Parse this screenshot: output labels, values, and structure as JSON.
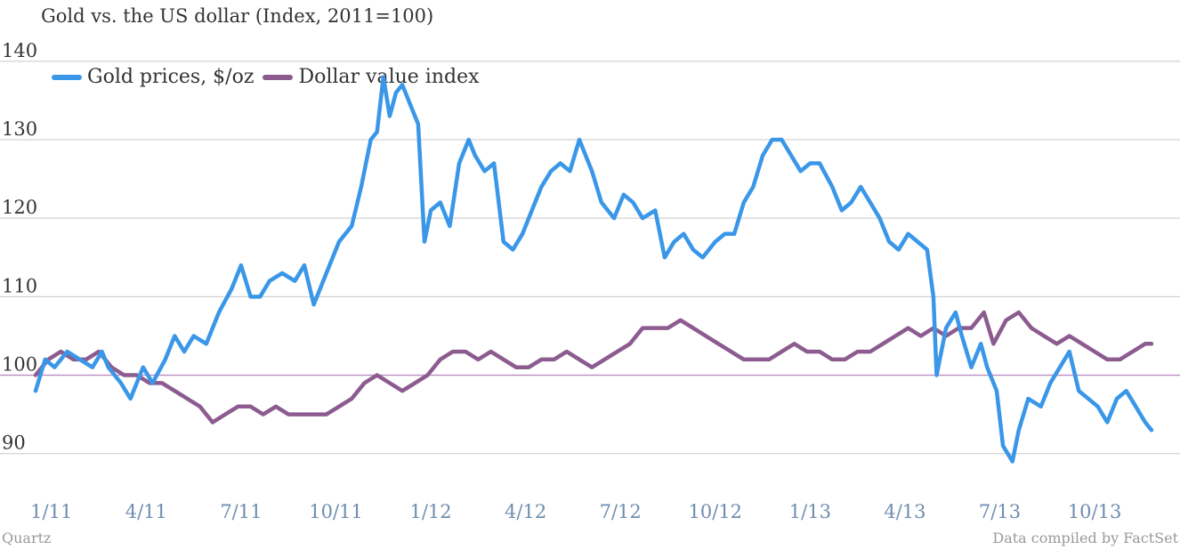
{
  "chart_data": {
    "type": "line",
    "title": "Gold vs. the US dollar (Index, 2011=100)",
    "xlabel": "",
    "ylabel": "",
    "ylim": [
      86,
      141
    ],
    "xlim": [
      0,
      36.2
    ],
    "y_ticks": [
      90,
      100,
      110,
      120,
      130,
      140
    ],
    "x_ticks": [
      {
        "x": 0.5,
        "label": "1/11"
      },
      {
        "x": 3.5,
        "label": "4/11"
      },
      {
        "x": 6.5,
        "label": "7/11"
      },
      {
        "x": 9.5,
        "label": "10/11"
      },
      {
        "x": 12.5,
        "label": "1/12"
      },
      {
        "x": 15.5,
        "label": "4/12"
      },
      {
        "x": 18.5,
        "label": "7/12"
      },
      {
        "x": 21.5,
        "label": "10/12"
      },
      {
        "x": 24.5,
        "label": "1/13"
      },
      {
        "x": 27.5,
        "label": "4/13"
      },
      {
        "x": 30.5,
        "label": "7/13"
      },
      {
        "x": 33.5,
        "label": "10/13"
      }
    ],
    "reference_line": 100,
    "grid": true,
    "legend_position": "top-left",
    "series": [
      {
        "name": "Gold prices, $/oz",
        "color": "#3a97e8",
        "points": [
          [
            0,
            98
          ],
          [
            0.3,
            102
          ],
          [
            0.6,
            101
          ],
          [
            1.0,
            103
          ],
          [
            1.4,
            102
          ],
          [
            1.8,
            101
          ],
          [
            2.1,
            103
          ],
          [
            2.3,
            101
          ],
          [
            2.7,
            99
          ],
          [
            3.0,
            97
          ],
          [
            3.4,
            101
          ],
          [
            3.7,
            99
          ],
          [
            4.1,
            102
          ],
          [
            4.4,
            105
          ],
          [
            4.7,
            103
          ],
          [
            5.0,
            105
          ],
          [
            5.4,
            104
          ],
          [
            5.8,
            108
          ],
          [
            6.2,
            111
          ],
          [
            6.5,
            114
          ],
          [
            6.8,
            110
          ],
          [
            7.1,
            110
          ],
          [
            7.4,
            112
          ],
          [
            7.8,
            113
          ],
          [
            8.2,
            112
          ],
          [
            8.5,
            114
          ],
          [
            8.8,
            109
          ],
          [
            9.2,
            113
          ],
          [
            9.6,
            117
          ],
          [
            10.0,
            119
          ],
          [
            10.3,
            124
          ],
          [
            10.6,
            130
          ],
          [
            10.8,
            131
          ],
          [
            11.0,
            138
          ],
          [
            11.2,
            133
          ],
          [
            11.4,
            136
          ],
          [
            11.6,
            137
          ],
          [
            11.9,
            134
          ],
          [
            12.1,
            132
          ],
          [
            12.3,
            117
          ],
          [
            12.5,
            121
          ],
          [
            12.8,
            122
          ],
          [
            13.1,
            119
          ],
          [
            13.4,
            127
          ],
          [
            13.7,
            130
          ],
          [
            13.9,
            128
          ],
          [
            14.2,
            126
          ],
          [
            14.5,
            127
          ],
          [
            14.8,
            117
          ],
          [
            15.1,
            116
          ],
          [
            15.4,
            118
          ],
          [
            15.7,
            121
          ],
          [
            16.0,
            124
          ],
          [
            16.3,
            126
          ],
          [
            16.6,
            127
          ],
          [
            16.9,
            126
          ],
          [
            17.2,
            130
          ],
          [
            17.6,
            126
          ],
          [
            17.9,
            122
          ],
          [
            18.3,
            120
          ],
          [
            18.6,
            123
          ],
          [
            18.9,
            122
          ],
          [
            19.2,
            120
          ],
          [
            19.6,
            121
          ],
          [
            19.9,
            115
          ],
          [
            20.2,
            117
          ],
          [
            20.5,
            118
          ],
          [
            20.8,
            116
          ],
          [
            21.1,
            115
          ],
          [
            21.5,
            117
          ],
          [
            21.8,
            118
          ],
          [
            22.1,
            118
          ],
          [
            22.4,
            122
          ],
          [
            22.7,
            124
          ],
          [
            23.0,
            128
          ],
          [
            23.3,
            130
          ],
          [
            23.6,
            130
          ],
          [
            23.9,
            128
          ],
          [
            24.2,
            126
          ],
          [
            24.5,
            127
          ],
          [
            24.8,
            127
          ],
          [
            25.2,
            124
          ],
          [
            25.5,
            121
          ],
          [
            25.8,
            122
          ],
          [
            26.1,
            124
          ],
          [
            26.4,
            122
          ],
          [
            26.7,
            120
          ],
          [
            27.0,
            117
          ],
          [
            27.3,
            116
          ],
          [
            27.6,
            118
          ],
          [
            27.9,
            117
          ],
          [
            28.2,
            116
          ],
          [
            28.4,
            110
          ],
          [
            28.5,
            100
          ],
          [
            28.8,
            106
          ],
          [
            29.1,
            108
          ],
          [
            29.3,
            105
          ],
          [
            29.6,
            101
          ],
          [
            29.9,
            104
          ],
          [
            30.1,
            101
          ],
          [
            30.4,
            98
          ],
          [
            30.6,
            91
          ],
          [
            30.9,
            89
          ],
          [
            31.1,
            93
          ],
          [
            31.4,
            97
          ],
          [
            31.8,
            96
          ],
          [
            32.1,
            99
          ],
          [
            32.4,
            101
          ],
          [
            32.7,
            103
          ],
          [
            33.0,
            98
          ],
          [
            33.3,
            97
          ],
          [
            33.6,
            96
          ],
          [
            33.9,
            94
          ],
          [
            34.2,
            97
          ],
          [
            34.5,
            98
          ],
          [
            34.8,
            96
          ],
          [
            35.1,
            94
          ],
          [
            35.3,
            93
          ]
        ]
      },
      {
        "name": "Dollar value index",
        "color": "#8c5b8f",
        "points": [
          [
            0,
            100
          ],
          [
            0.4,
            102
          ],
          [
            0.8,
            103
          ],
          [
            1.2,
            102
          ],
          [
            1.6,
            102
          ],
          [
            2.0,
            103
          ],
          [
            2.4,
            101
          ],
          [
            2.8,
            100
          ],
          [
            3.2,
            100
          ],
          [
            3.6,
            99
          ],
          [
            4.0,
            99
          ],
          [
            4.4,
            98
          ],
          [
            4.8,
            97
          ],
          [
            5.2,
            96
          ],
          [
            5.6,
            94
          ],
          [
            6.0,
            95
          ],
          [
            6.4,
            96
          ],
          [
            6.8,
            96
          ],
          [
            7.2,
            95
          ],
          [
            7.6,
            96
          ],
          [
            8.0,
            95
          ],
          [
            8.4,
            95
          ],
          [
            8.8,
            95
          ],
          [
            9.2,
            95
          ],
          [
            9.6,
            96
          ],
          [
            10.0,
            97
          ],
          [
            10.4,
            99
          ],
          [
            10.8,
            100
          ],
          [
            11.2,
            99
          ],
          [
            11.6,
            98
          ],
          [
            12.0,
            99
          ],
          [
            12.4,
            100
          ],
          [
            12.8,
            102
          ],
          [
            13.2,
            103
          ],
          [
            13.6,
            103
          ],
          [
            14.0,
            102
          ],
          [
            14.4,
            103
          ],
          [
            14.8,
            102
          ],
          [
            15.2,
            101
          ],
          [
            15.6,
            101
          ],
          [
            16.0,
            102
          ],
          [
            16.4,
            102
          ],
          [
            16.8,
            103
          ],
          [
            17.2,
            102
          ],
          [
            17.6,
            101
          ],
          [
            18.0,
            102
          ],
          [
            18.4,
            103
          ],
          [
            18.8,
            104
          ],
          [
            19.2,
            106
          ],
          [
            19.6,
            106
          ],
          [
            20.0,
            106
          ],
          [
            20.4,
            107
          ],
          [
            20.8,
            106
          ],
          [
            21.2,
            105
          ],
          [
            21.6,
            104
          ],
          [
            22.0,
            103
          ],
          [
            22.4,
            102
          ],
          [
            22.8,
            102
          ],
          [
            23.2,
            102
          ],
          [
            23.6,
            103
          ],
          [
            24.0,
            104
          ],
          [
            24.4,
            103
          ],
          [
            24.8,
            103
          ],
          [
            25.2,
            102
          ],
          [
            25.6,
            102
          ],
          [
            26.0,
            103
          ],
          [
            26.4,
            103
          ],
          [
            26.8,
            104
          ],
          [
            27.2,
            105
          ],
          [
            27.6,
            106
          ],
          [
            28.0,
            105
          ],
          [
            28.4,
            106
          ],
          [
            28.8,
            105
          ],
          [
            29.2,
            106
          ],
          [
            29.6,
            106
          ],
          [
            30.0,
            108
          ],
          [
            30.3,
            104
          ],
          [
            30.7,
            107
          ],
          [
            31.1,
            108
          ],
          [
            31.5,
            106
          ],
          [
            31.9,
            105
          ],
          [
            32.3,
            104
          ],
          [
            32.7,
            105
          ],
          [
            33.1,
            104
          ],
          [
            33.5,
            103
          ],
          [
            33.9,
            102
          ],
          [
            34.3,
            102
          ],
          [
            34.7,
            103
          ],
          [
            35.1,
            104
          ],
          [
            35.3,
            104
          ]
        ]
      }
    ]
  },
  "footer": {
    "source_left": "Quartz",
    "source_right": "Data compiled by FactSet"
  }
}
